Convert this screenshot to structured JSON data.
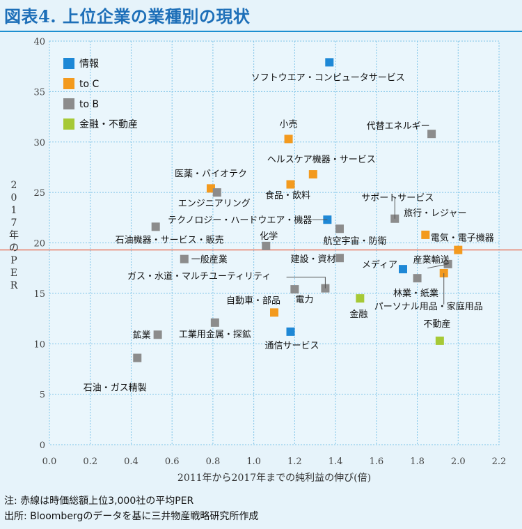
{
  "title": "図表4. 上位企業の業種別の現状",
  "note": "注: 赤線は時価総額上位3,000社の平均PER",
  "source": "出所: Bloombergのデータを基に三井物産戦略研究所作成",
  "colors": {
    "background": "#e6f3fa",
    "title": "#1d6fb8",
    "grid": "#7fc4e8",
    "ref_line": "#e8664a"
  },
  "chart_data": {
    "type": "scatter",
    "xlabel": "2011年から2017年までの純利益の伸び(倍)",
    "ylabel": "2017年のPER",
    "xlim": [
      0.0,
      2.2
    ],
    "ylim": [
      0,
      40
    ],
    "xticks": [
      "0.0",
      "0.2",
      "0.4",
      "0.6",
      "0.8",
      "1.0",
      "1.2",
      "1.4",
      "1.6",
      "1.8",
      "2.0",
      "2.2"
    ],
    "yticks": [
      "0",
      "5",
      "10",
      "15",
      "20",
      "25",
      "30",
      "35",
      "40"
    ],
    "grid": "dotted",
    "legend_position": "top-left",
    "reference_line": {
      "y": 19.3
    },
    "series": [
      {
        "name": "情報",
        "color": "#1e88d6"
      },
      {
        "name": "to C",
        "color": "#f39a1e"
      },
      {
        "name": "to B",
        "color": "#8c8c8c"
      },
      {
        "name": "金融・不動産",
        "color": "#a6c936"
      }
    ],
    "points": [
      {
        "label": "ソフトウエア・コンピュータサービス",
        "series": 0,
        "x": 1.37,
        "y": 37.9
      },
      {
        "label": "テクノロジー・ハードウエア・機器",
        "series": 0,
        "x": 1.36,
        "y": 22.3
      },
      {
        "label": "メディア",
        "series": 0,
        "x": 1.73,
        "y": 17.4
      },
      {
        "label": "通信サービス",
        "series": 0,
        "x": 1.18,
        "y": 11.2
      },
      {
        "label": "小売",
        "series": 1,
        "x": 1.17,
        "y": 30.3
      },
      {
        "label": "ヘルスケア機器・サービス",
        "series": 1,
        "x": 1.29,
        "y": 26.8
      },
      {
        "label": "食品・飲料",
        "series": 1,
        "x": 1.18,
        "y": 25.8
      },
      {
        "label": "医薬・バイオテク",
        "series": 1,
        "x": 0.79,
        "y": 25.4
      },
      {
        "label": "旅行・レジャー",
        "series": 1,
        "x": 1.84,
        "y": 20.8
      },
      {
        "label": "電気・電子機器",
        "series": 1,
        "x": 2.0,
        "y": 19.3
      },
      {
        "label": "パーソナル用品・家庭用品",
        "series": 1,
        "x": 1.93,
        "y": 17.0
      },
      {
        "label": "自動車・部品",
        "series": 1,
        "x": 1.1,
        "y": 13.1
      },
      {
        "label": "代替エネルギー",
        "series": 2,
        "x": 1.87,
        "y": 30.8
      },
      {
        "label": "エンジニアリング",
        "series": 2,
        "x": 0.82,
        "y": 25.0
      },
      {
        "label": "石油機器・サービス・販売",
        "series": 2,
        "x": 0.52,
        "y": 21.6
      },
      {
        "label": "サポートサービス",
        "series": 2,
        "x": 1.69,
        "y": 22.4
      },
      {
        "label": "航空宇宙・防衛",
        "series": 2,
        "x": 1.42,
        "y": 21.4
      },
      {
        "label": "化学",
        "series": 2,
        "x": 1.06,
        "y": 19.7
      },
      {
        "label": "一般産業",
        "series": 2,
        "x": 0.66,
        "y": 18.4
      },
      {
        "label": "建設・資材",
        "series": 2,
        "x": 1.42,
        "y": 18.5
      },
      {
        "label": "産業輸送",
        "series": 2,
        "x": 1.95,
        "y": 17.9
      },
      {
        "label": "林業・紙業",
        "series": 2,
        "x": 1.8,
        "y": 16.5
      },
      {
        "label": "ガス・水道・マルチユーティリティ",
        "series": 2,
        "x": 1.35,
        "y": 15.5
      },
      {
        "label": "電力",
        "series": 2,
        "x": 1.2,
        "y": 15.4
      },
      {
        "label": "工業用金属・探鉱",
        "series": 2,
        "x": 0.81,
        "y": 12.1
      },
      {
        "label": "鉱業",
        "series": 2,
        "x": 0.53,
        "y": 10.9
      },
      {
        "label": "石油・ガス精製",
        "series": 2,
        "x": 0.43,
        "y": 8.6
      },
      {
        "label": "金融",
        "series": 3,
        "x": 1.52,
        "y": 14.5
      },
      {
        "label": "不動産",
        "series": 3,
        "x": 1.91,
        "y": 10.3
      }
    ]
  }
}
